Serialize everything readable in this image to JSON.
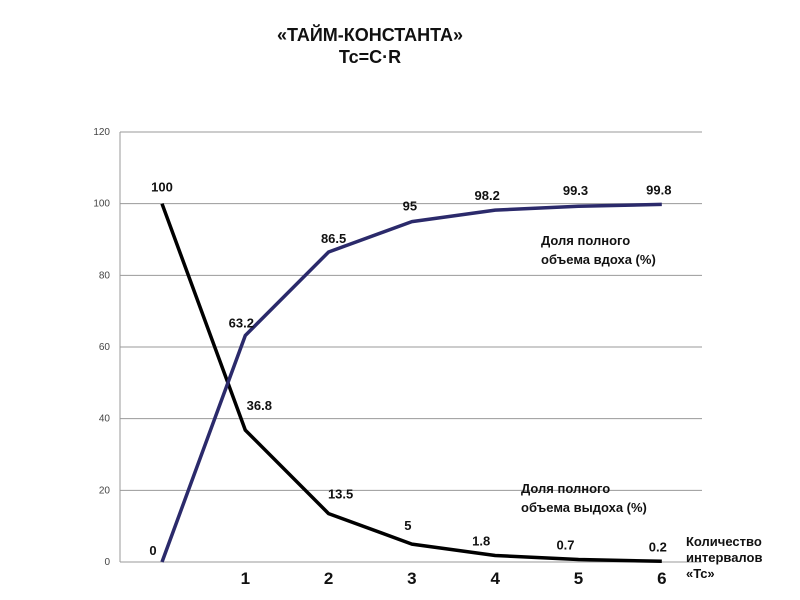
{
  "header": {
    "title": "«ТАЙМ-КОНСТАНТА»",
    "subtitle": "Tc=C·R"
  },
  "chart_data": {
    "type": "line",
    "ylim": [
      0,
      120
    ],
    "yticks": [
      0,
      20,
      40,
      60,
      80,
      100,
      120
    ],
    "x": [
      0,
      1,
      2,
      3,
      4,
      5,
      6
    ],
    "x_tick_labels": [
      "1",
      "2",
      "3",
      "4",
      "5",
      "6"
    ],
    "x_tick_values": [
      1,
      2,
      3,
      4,
      5,
      6
    ],
    "xlabel": "Количество интервалов «Tc»",
    "xlabel_lines": [
      "Количество",
      "интервалов",
      "«Tc»"
    ],
    "grid": true,
    "series": [
      {
        "name": "Доля полного объема вдоха (%)",
        "name_lines": [
          "Доля полного",
          "объема вдоха (%)"
        ],
        "color": "#2b2a6b",
        "values": [
          0,
          63.2,
          86.5,
          95,
          98.2,
          99.3,
          99.8
        ],
        "labels": [
          "0",
          "63.2",
          "86.5",
          "95",
          "98.2",
          "99.3",
          "99.8"
        ]
      },
      {
        "name": "Доля полного объема выдоха (%)",
        "name_lines": [
          "Доля полного",
          "объема выдоха (%)"
        ],
        "color": "#000000",
        "values": [
          100,
          36.8,
          13.5,
          5,
          1.8,
          0.7,
          0.2
        ],
        "labels": [
          "100",
          "36.8",
          "13.5",
          "5",
          "1.8",
          "0.7",
          "0.2"
        ]
      }
    ]
  }
}
